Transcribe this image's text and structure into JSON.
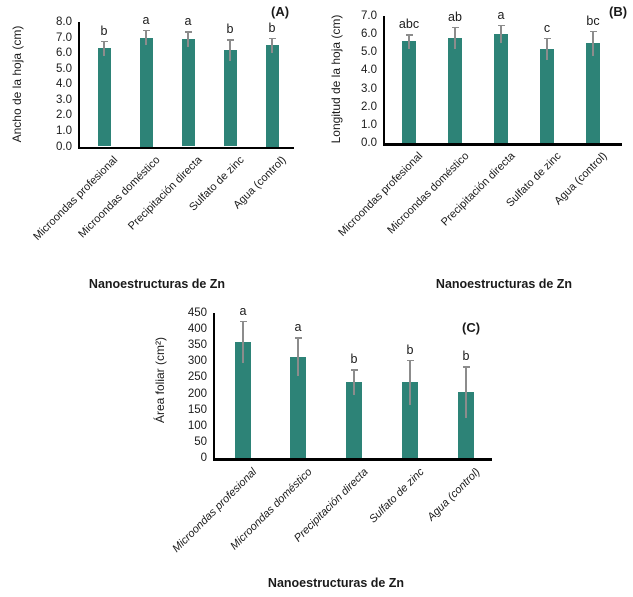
{
  "figure_title": "",
  "style": {
    "bar_color": "#2D8377",
    "error_bar_color": "#8C8C8C",
    "axis_color": "#000000",
    "text_color": "#1a1a1a",
    "background": "#ffffff"
  },
  "chart_data": [
    {
      "type": "bar",
      "panel_label": "(A)",
      "ylabel": "Ancho de la hoja (cm)",
      "xlabel": "Nanoestructuras de Zn",
      "categories": [
        "Microondas profesional",
        "Microondas doméstico",
        "Precipitación directa",
        "Sulfato de zinc",
        "Agua (control)"
      ],
      "values": [
        6.3,
        7.0,
        6.9,
        6.2,
        6.5
      ],
      "errors": [
        0.5,
        0.5,
        0.5,
        0.7,
        0.5
      ],
      "sig_letters": [
        "b",
        "a",
        "a",
        "b",
        "b"
      ],
      "ylim": [
        0,
        8
      ],
      "ytick_step": 1.0,
      "yticks": [
        "8.0",
        "7.0",
        "6.0",
        "5.0",
        "4.0",
        "3.0",
        "2.0",
        "1.0",
        "0.0"
      ],
      "grid": false,
      "legend": null
    },
    {
      "type": "bar",
      "panel_label": "(B)",
      "ylabel": "Longitud de la hoja (cm)",
      "xlabel": "Nanoestructuras de Zn",
      "categories": [
        "Microondas profesional",
        "Microondas doméstico",
        "Precipitación directa",
        "Sulfato de zinc",
        "Agua (control)"
      ],
      "values": [
        5.6,
        5.8,
        6.0,
        5.2,
        5.5
      ],
      "errors": [
        0.4,
        0.6,
        0.5,
        0.6,
        0.7
      ],
      "sig_letters": [
        "abc",
        "ab",
        "a",
        "c",
        "bc"
      ],
      "ylim": [
        0,
        7
      ],
      "ytick_step": 1.0,
      "yticks": [
        "7.0",
        "6.0",
        "5.0",
        "4.0",
        "3.0",
        "2.0",
        "1.0",
        "0.0"
      ],
      "grid": false,
      "legend": null
    },
    {
      "type": "bar",
      "panel_label": "(C)",
      "ylabel": "Área foliar (cm²)",
      "xlabel": "Nanoestructuras de Zn",
      "categories": [
        "Microondas profesional",
        "Microondas doméstico",
        "Precipitación directa",
        "Sulfato de zinc",
        "Agua (control)"
      ],
      "values": [
        360,
        315,
        235,
        235,
        205
      ],
      "errors": [
        65,
        60,
        40,
        70,
        80
      ],
      "sig_letters": [
        "a",
        "a",
        "b",
        "b",
        "b"
      ],
      "ylim": [
        0,
        450
      ],
      "ytick_step": 50,
      "yticks": [
        "450",
        "400",
        "350",
        "300",
        "250",
        "200",
        "150",
        "100",
        "50",
        "0"
      ],
      "grid": false,
      "legend": null
    }
  ]
}
